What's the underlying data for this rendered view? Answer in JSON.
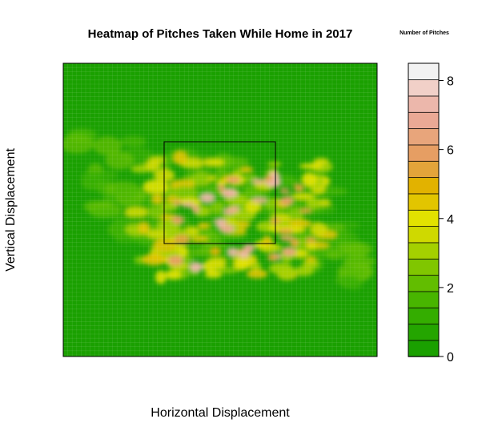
{
  "chart_data": {
    "type": "heatmap",
    "title": "Heatmap of Pitches Taken While Home in 2017",
    "xlabel": "Horizontal Displacement",
    "ylabel": "Vertical Displacement",
    "legend": {
      "title": "Number of Pitches",
      "placement": "right",
      "range": [
        0,
        8.5
      ],
      "ticks": [
        "0",
        "2",
        "4",
        "6",
        "8"
      ],
      "colors": [
        "#1aa000",
        "#24a500",
        "#34ad00",
        "#48b500",
        "#62bd00",
        "#80c600",
        "#a4d000",
        "#cfd900",
        "#e2e200",
        "#e2c500",
        "#e2b200",
        "#e3a43a",
        "#e69e63",
        "#e8a57b",
        "#eaa995",
        "#ecb7ab",
        "#f1d0c8",
        "#f2f2f2"
      ]
    },
    "strike_zone": true,
    "grid": false
  }
}
